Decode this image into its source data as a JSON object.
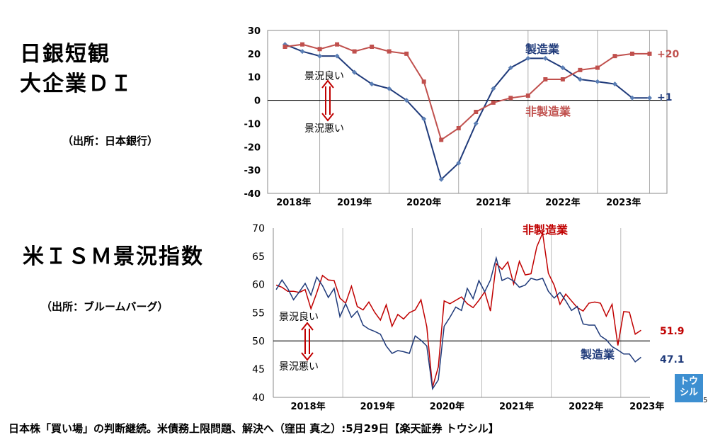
{
  "left_panel": {
    "title1_line1": "日銀短観",
    "title1_line2": "大企業ＤＩ",
    "source1": "（出所：日本銀行）",
    "title2": "米ＩＳＭ景況指数",
    "source2": "（出所：ブルームバーグ）"
  },
  "footer": {
    "text": "日本株「買い場」の判断継続。米債務上限問題、解決へ（窪田 真之）:5月29日【楽天証券 トウシル】"
  },
  "logo": {
    "line1": "トウ",
    "line2": "シル",
    "color": "#3d8fd1"
  },
  "page_number": "5",
  "chart_data": [
    {
      "type": "line",
      "title": "日銀短観 大企業ＤＩ",
      "ylim": [
        -40,
        30
      ],
      "y_ticks": [
        30,
        20,
        10,
        0,
        -10,
        -20,
        -30,
        -40
      ],
      "x_range": [
        2017.75,
        2023.5
      ],
      "x_tick_labels": [
        "2018年",
        "2019年",
        "2020年",
        "2021年",
        "2022年",
        "2023年"
      ],
      "year_boundaries": [
        2018.5,
        2019.5,
        2020.5,
        2021.5,
        2022.5,
        2023.25
      ],
      "series": [
        {
          "name": "製造業",
          "color": "#1f3a7a",
          "x": [
            2018.0,
            2018.25,
            2018.5,
            2018.75,
            2019.0,
            2019.25,
            2019.5,
            2019.75,
            2020.0,
            2020.25,
            2020.5,
            2020.75,
            2021.0,
            2021.25,
            2021.5,
            2021.75,
            2022.0,
            2022.25,
            2022.5,
            2022.75,
            2023.0,
            2023.25
          ],
          "values": [
            24,
            21,
            19,
            19,
            12,
            7,
            5,
            0,
            -8,
            -34,
            -27,
            -10,
            5,
            14,
            18,
            18,
            14,
            9,
            8,
            7,
            1,
            1
          ],
          "end_label": "+1"
        },
        {
          "name": "非製造業",
          "color": "#c0504d",
          "x": [
            2018.0,
            2018.25,
            2018.5,
            2018.75,
            2019.0,
            2019.25,
            2019.5,
            2019.75,
            2020.0,
            2020.25,
            2020.5,
            2020.75,
            2021.0,
            2021.25,
            2021.5,
            2021.75,
            2022.0,
            2022.25,
            2022.5,
            2022.75,
            2023.0,
            2023.25
          ],
          "values": [
            23,
            24,
            22,
            24,
            21,
            23,
            21,
            20,
            8,
            -17,
            -12,
            -5,
            -1,
            1,
            2,
            9,
            9,
            13,
            14,
            19,
            20,
            20
          ],
          "end_label": "+20"
        }
      ],
      "annotations": {
        "up": "景況良い",
        "down": "景況悪い"
      }
    },
    {
      "type": "line",
      "title": "米ＩＳＭ景況指数",
      "ylim": [
        40,
        70
      ],
      "y_ticks": [
        70,
        65,
        60,
        55,
        50,
        45,
        40
      ],
      "x_range": [
        2018.0,
        2023.42
      ],
      "x_tick_labels": [
        "2018年",
        "2019年",
        "2020年",
        "2021年",
        "2022年",
        "2023年"
      ],
      "year_boundaries": [
        2019.0,
        2020.0,
        2021.0,
        2022.0,
        2023.0
      ],
      "series": [
        {
          "name": "非製造業",
          "color": "#c00000",
          "values": [
            59.9,
            59.5,
            58.8,
            58.8,
            58.6,
            59.1,
            55.7,
            58.5,
            61.6,
            60.8,
            60.7,
            57.6,
            56.7,
            59.7,
            56.1,
            55.5,
            56.9,
            55.1,
            53.7,
            56.4,
            52.6,
            54.7,
            53.9,
            55.0,
            55.5,
            57.3,
            52.5,
            41.8,
            45.4,
            57.1,
            56.6,
            57.2,
            57.8,
            56.6,
            55.9,
            57.2,
            58.7,
            55.3,
            63.7,
            62.7,
            64.0,
            60.1,
            64.1,
            61.7,
            61.9,
            66.7,
            69.1,
            62.0,
            59.9,
            56.5,
            58.3,
            57.1,
            55.9,
            55.3,
            56.7,
            56.9,
            56.7,
            54.4,
            56.5,
            49.2,
            55.2,
            55.1,
            51.2,
            51.9
          ],
          "end_label": "51.9"
        },
        {
          "name": "製造業",
          "color": "#1f3a7a",
          "values": [
            59.1,
            60.8,
            59.3,
            57.3,
            58.7,
            60.2,
            58.1,
            61.3,
            59.8,
            57.7,
            59.3,
            54.3,
            56.6,
            54.2,
            55.3,
            52.8,
            52.1,
            51.7,
            51.2,
            49.1,
            47.8,
            48.3,
            48.1,
            47.8,
            50.9,
            50.1,
            49.1,
            41.5,
            43.1,
            52.6,
            54.2,
            56.0,
            55.4,
            59.3,
            57.5,
            60.7,
            58.7,
            60.8,
            64.7,
            60.7,
            61.2,
            60.6,
            59.5,
            59.9,
            61.1,
            60.8,
            61.1,
            58.8,
            57.6,
            58.6,
            57.1,
            55.4,
            56.1,
            53.0,
            52.8,
            52.8,
            50.9,
            50.2,
            49.0,
            48.4,
            47.7,
            47.7,
            46.3,
            47.1
          ],
          "end_label": "47.1"
        }
      ],
      "annotations": {
        "up": "景況良い",
        "down": "景況悪い"
      }
    }
  ]
}
